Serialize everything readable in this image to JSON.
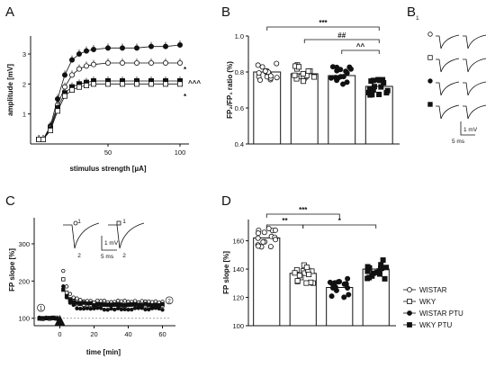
{
  "colors": {
    "ink": "#111111",
    "open": "#ffffff",
    "grey": "#888888"
  },
  "chart_data": [
    {
      "panel": "A",
      "type": "scatter",
      "xlabel": "stimulus strength [µA]",
      "ylabel": "amplitude [mV]",
      "xlim": [
        0,
        100
      ],
      "ylim": [
        0,
        3.6
      ],
      "xticks": [
        "50",
        "100"
      ],
      "yticks": [
        "1",
        "2",
        "3"
      ],
      "x": [
        2,
        5,
        10,
        15,
        20,
        25,
        30,
        35,
        40,
        50,
        60,
        70,
        80,
        90,
        100
      ],
      "series": [
        {
          "marker": "filled-circle",
          "values": [
            0.15,
            0.15,
            0.6,
            1.5,
            2.3,
            2.8,
            3.0,
            3.1,
            3.15,
            3.2,
            3.2,
            3.2,
            3.25,
            3.25,
            3.3
          ]
        },
        {
          "marker": "open-circle",
          "values": [
            0.15,
            0.15,
            0.55,
            1.3,
            1.9,
            2.3,
            2.5,
            2.6,
            2.65,
            2.7,
            2.7,
            2.7,
            2.7,
            2.7,
            2.7
          ]
        },
        {
          "marker": "filled-square",
          "values": [
            0.15,
            0.15,
            0.5,
            1.2,
            1.7,
            1.9,
            2.0,
            2.05,
            2.1,
            2.1,
            2.1,
            2.1,
            2.1,
            2.1,
            2.1
          ]
        },
        {
          "marker": "open-square",
          "values": [
            0.15,
            0.15,
            0.45,
            1.1,
            1.6,
            1.8,
            1.9,
            1.95,
            2.0,
            2.0,
            2.0,
            2.0,
            2.0,
            2.0,
            2.0
          ]
        }
      ],
      "annotations": [
        "*",
        "^^^",
        "*"
      ]
    },
    {
      "panel": "B",
      "type": "bar",
      "ylabel": "FP₂/FP₁ ratio (%)",
      "ylim": [
        0.4,
        1.0
      ],
      "yticks": [
        "0.4",
        "0.6",
        "0.8",
        "1.0"
      ],
      "series": [
        {
          "marker": "open-circle",
          "values": [
            0.8
          ]
        },
        {
          "marker": "open-square",
          "values": [
            0.79
          ]
        },
        {
          "marker": "filled-circle",
          "values": [
            0.78
          ]
        },
        {
          "marker": "filled-square",
          "values": [
            0.72
          ]
        }
      ],
      "annotations": [
        "***",
        "##",
        "^^"
      ]
    },
    {
      "panel": "C",
      "type": "line",
      "xlabel": "time [min]",
      "ylabel": "FP slope [%]",
      "xlim": [
        -15,
        65
      ],
      "ylim": [
        80,
        370
      ],
      "xticks": [
        "0",
        "20",
        "40",
        "60"
      ],
      "yticks": [
        "100",
        "200",
        "300"
      ],
      "trace_labels": [
        "1",
        "2",
        "1",
        "2"
      ],
      "scale_mv": "1 mV",
      "scale_ms": "5 ms",
      "period_labels": [
        "1",
        "2"
      ]
    },
    {
      "panel": "D",
      "type": "bar",
      "ylabel": "FP slope [%]",
      "ylim": [
        100,
        175
      ],
      "yticks": [
        "100",
        "120",
        "140",
        "160"
      ],
      "series": [
        {
          "marker": "open-circle",
          "values": [
            162
          ]
        },
        {
          "marker": "open-square",
          "values": [
            137
          ]
        },
        {
          "marker": "filled-circle",
          "values": [
            127
          ]
        },
        {
          "marker": "filled-square",
          "values": [
            140
          ]
        }
      ],
      "annotations": [
        "***",
        "**",
        "*"
      ]
    }
  ],
  "panels": {
    "a": "A",
    "b": "B",
    "b1": "B",
    "b1_sub": "1",
    "c": "C",
    "d": "D"
  },
  "b1_scale": {
    "mv": "1 mV",
    "ms": "5 ms"
  },
  "legend": [
    "WISTAR",
    "WKY",
    "WISTAR PTU",
    "WKY PTU"
  ]
}
